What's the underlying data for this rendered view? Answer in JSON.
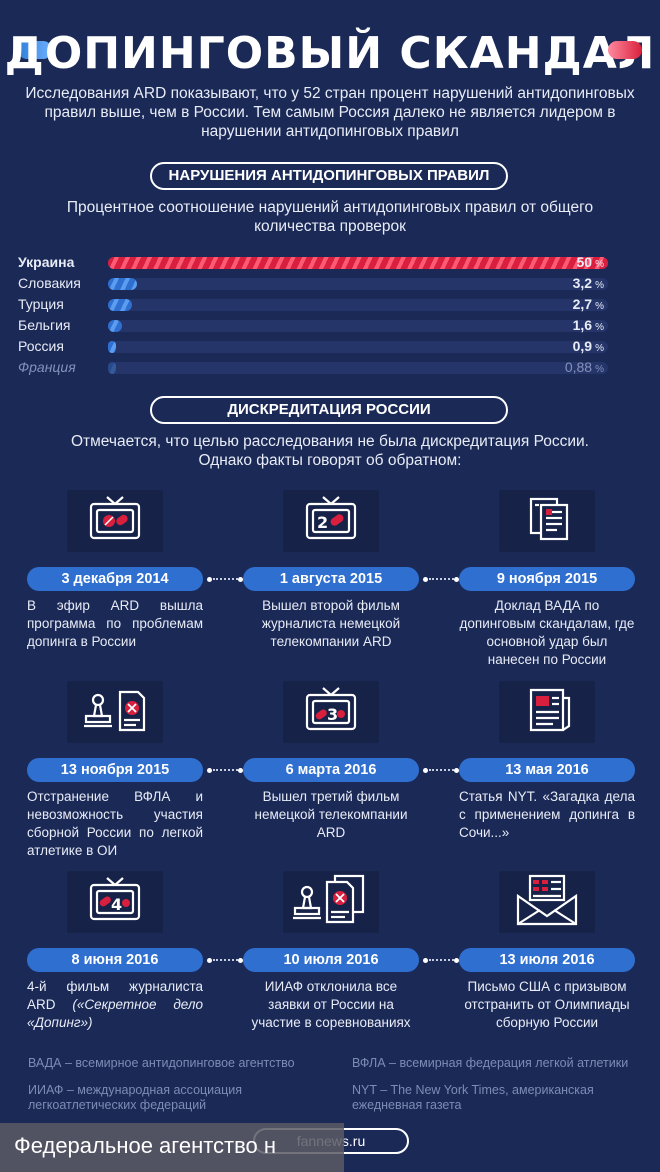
{
  "title": "ДОПИНГОВЫЙ СКАНДАЛ",
  "intro": "Исследования ARD показывают, что у 52 стран процент нарушений антидопинговых правил выше, чем в России. Тем самым Россия далеко не является лидером в нарушении антидопинговых правил",
  "section1": {
    "heading": "НАРУШЕНИЯ АНТИДОПИНГОВЫХ ПРАВИЛ",
    "subtitle": "Процентное соотношение нарушений антидопинговых правил от общего количества проверок"
  },
  "chart_data": {
    "type": "bar",
    "categories": [
      "Украина",
      "Словакия",
      "Турция",
      "Бельгия",
      "Россия",
      "Франция"
    ],
    "values": [
      50,
      3.2,
      2.7,
      1.6,
      0.9,
      0.88
    ],
    "value_labels": [
      "50",
      "3,2",
      "2,7",
      "1,6",
      "0,9",
      "0,88"
    ],
    "unit": "%",
    "highlight_color": "#d81f3e",
    "bar_color": "#2f6fd0"
  },
  "section2": {
    "heading": "ДИСКРЕДИТАЦИЯ РОССИИ",
    "subtitle": "Отмечается, что целью расследования не была дискредитация России. Однако факты говорят об обратном:"
  },
  "timeline": [
    {
      "date": "3 декабря 2014",
      "text": "В эфир ARD вышла программа по проблемам допинга в России",
      "icon": "tv-pills-icon"
    },
    {
      "date": "1 августа 2015",
      "text": "Вышел второй фильм журналиста немецкой телекомпании ARD",
      "icon": "tv-2-icon"
    },
    {
      "date": "9 ноября 2015",
      "text": "Доклад ВАДА по допинговым скандалам, где основной удар был нанесен по России",
      "icon": "documents-icon"
    },
    {
      "date": "13 ноября 2015",
      "text": "Отстранение ВФЛА и невозможность участия сборной России по легкой атлетике в ОИ",
      "icon": "stamp-icon"
    },
    {
      "date": "6 марта 2016",
      "text": "Вышел третий фильм немецкой телекомпании ARD",
      "icon": "tv-3-icon"
    },
    {
      "date": "13 мая 2016",
      "text": "Статья NYT. «Загадка дела с применением допинга в Сочи...»",
      "icon": "newspaper-icon"
    },
    {
      "date": "8 июня 2016",
      "text": "4-й фильм журналиста ARD «Секретное дело «Допинг»",
      "text_plain": "4-й фильм журналиста ARD ",
      "text_italic": "(«Секретное дело «Допинг»)",
      "icon": "tv-4-icon"
    },
    {
      "date": "10 июля 2016",
      "text": "ИИАФ отклонила все заявки от России на участие в соревнованиях",
      "icon": "stamp-documents-icon"
    },
    {
      "date": "13 июля 2016",
      "text": "Письмо США с призывом отстранить от Олимпиады сборную России",
      "icon": "envelope-flag-icon"
    }
  ],
  "footnotes": [
    "ВАДА – всемирное антидопинговое агентство",
    "ВФЛА – всемирная федерация легкой атлетики",
    "ИИАФ – международная ассоциация легкоатлетических федераций",
    "NYT – The New York Times, американская ежедневная газета"
  ],
  "footer": {
    "ribbon": "Федеральное агентство н",
    "site": "fannews.ru"
  }
}
